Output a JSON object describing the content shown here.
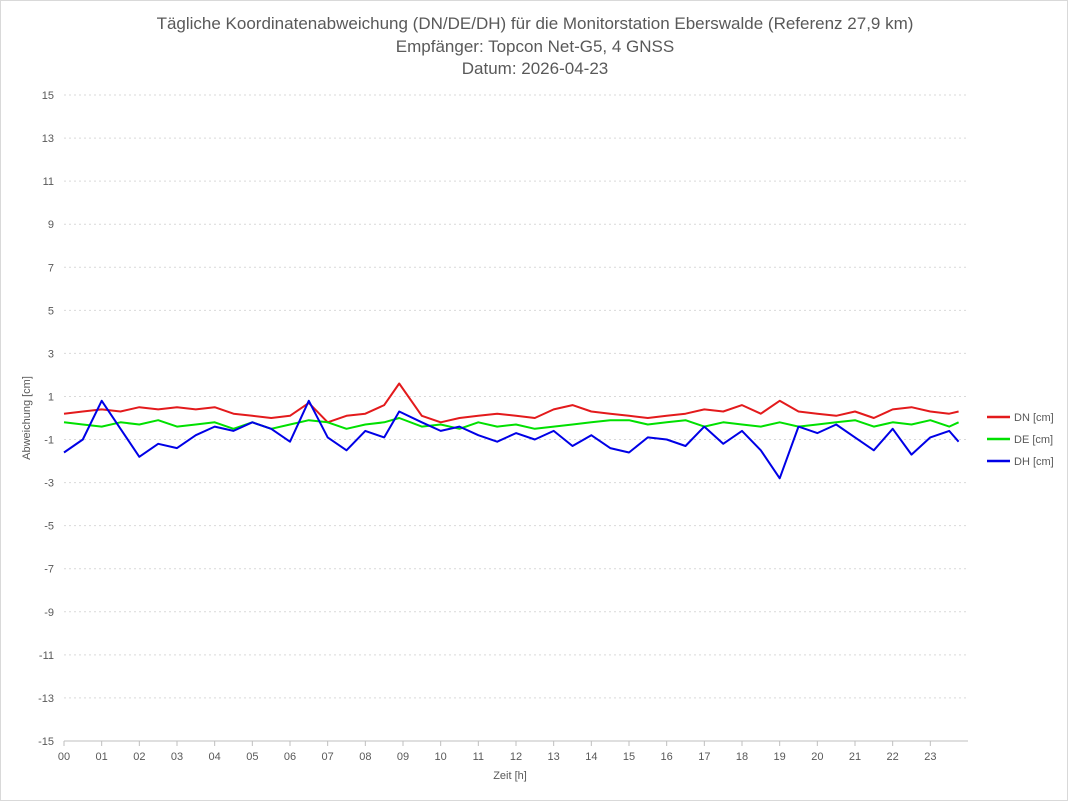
{
  "chart_data": {
    "type": "line",
    "title": "Tägliche Koordinatenabweichung (DN/DE/DH) für die Monitorstation Eberswalde (Referenz 27,9 km)",
    "subtitle": "Empfänger: Topcon Net-G5, 4 GNSS",
    "date_line": "Datum: 2026-04-23",
    "xlabel": "Zeit [h]",
    "ylabel": "Abweichung [cm]",
    "xlim": [
      0,
      24
    ],
    "ylim": [
      -15,
      15
    ],
    "x_ticks": [
      "00",
      "01",
      "02",
      "03",
      "04",
      "05",
      "06",
      "07",
      "08",
      "09",
      "10",
      "11",
      "12",
      "13",
      "14",
      "15",
      "16",
      "17",
      "18",
      "19",
      "20",
      "21",
      "22",
      "23"
    ],
    "y_ticks": [
      "15",
      "13",
      "11",
      "9",
      "7",
      "5",
      "3",
      "1",
      "-1",
      "-3",
      "-5",
      "-7",
      "-9",
      "-11",
      "-13",
      "-15"
    ],
    "grid": true,
    "legend_position": "right",
    "x": [
      0.0,
      0.5,
      1.0,
      1.5,
      2.0,
      2.5,
      3.0,
      3.5,
      4.0,
      4.5,
      5.0,
      5.5,
      6.0,
      6.5,
      7.0,
      7.5,
      8.0,
      8.5,
      8.9,
      9.5,
      10.0,
      10.5,
      11.0,
      11.5,
      12.0,
      12.5,
      13.0,
      13.5,
      14.0,
      14.5,
      15.0,
      15.5,
      16.0,
      16.5,
      17.0,
      17.5,
      18.0,
      18.5,
      19.0,
      19.5,
      20.0,
      20.5,
      21.0,
      21.5,
      22.0,
      22.5,
      23.0,
      23.5,
      23.75
    ],
    "series": [
      {
        "name": "DN [cm]",
        "color": "#e31a1c",
        "values": [
          0.2,
          0.3,
          0.4,
          0.3,
          0.5,
          0.4,
          0.5,
          0.4,
          0.5,
          0.2,
          0.1,
          0.0,
          0.1,
          0.7,
          -0.2,
          0.1,
          0.2,
          0.6,
          1.6,
          0.1,
          -0.2,
          0.0,
          0.1,
          0.2,
          0.1,
          0.0,
          0.4,
          0.6,
          0.3,
          0.2,
          0.1,
          0.0,
          0.1,
          0.2,
          0.4,
          0.3,
          0.6,
          0.2,
          0.8,
          0.3,
          0.2,
          0.1,
          0.3,
          0.0,
          0.4,
          0.5,
          0.3,
          0.2,
          0.3
        ]
      },
      {
        "name": "DE [cm]",
        "color": "#00e000",
        "values": [
          -0.2,
          -0.3,
          -0.4,
          -0.2,
          -0.3,
          -0.1,
          -0.4,
          -0.3,
          -0.2,
          -0.5,
          -0.2,
          -0.5,
          -0.3,
          -0.1,
          -0.2,
          -0.5,
          -0.3,
          -0.2,
          0.0,
          -0.4,
          -0.3,
          -0.5,
          -0.2,
          -0.4,
          -0.3,
          -0.5,
          -0.4,
          -0.3,
          -0.2,
          -0.1,
          -0.1,
          -0.3,
          -0.2,
          -0.1,
          -0.4,
          -0.2,
          -0.3,
          -0.4,
          -0.2,
          -0.4,
          -0.3,
          -0.2,
          -0.1,
          -0.4,
          -0.2,
          -0.3,
          -0.1,
          -0.4,
          -0.2
        ]
      },
      {
        "name": "DH [cm]",
        "color": "#0000e6",
        "values": [
          -1.6,
          -1.0,
          0.8,
          -0.5,
          -1.8,
          -1.2,
          -1.4,
          -0.8,
          -0.4,
          -0.6,
          -0.2,
          -0.5,
          -1.1,
          0.8,
          -0.9,
          -1.5,
          -0.6,
          -0.9,
          0.3,
          -0.2,
          -0.6,
          -0.4,
          -0.8,
          -1.1,
          -0.7,
          -1.0,
          -0.6,
          -1.3,
          -0.8,
          -1.4,
          -1.6,
          -0.9,
          -1.0,
          -1.3,
          -0.4,
          -1.2,
          -0.6,
          -1.5,
          -2.8,
          -0.4,
          -0.7,
          -0.3,
          -0.9,
          -1.5,
          -0.5,
          -1.7,
          -0.9,
          -0.6,
          -1.1
        ]
      }
    ]
  }
}
